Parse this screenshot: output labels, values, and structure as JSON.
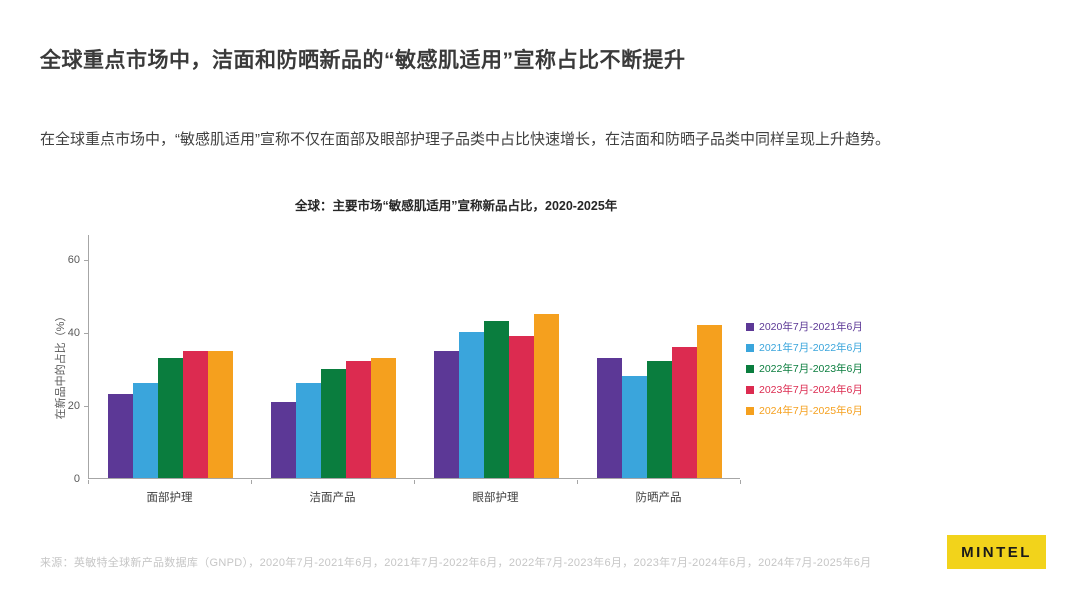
{
  "page": {
    "title": "全球重点市场中，洁面和防晒新品的“敏感肌适用”宣称占比不断提升",
    "body_text": "在全球重点市场中，“敏感肌适用”宣称不仅在面部及眼部护理子品类中占比快速增长，在洁面和防晒子品类中同样呈现上升趋势。",
    "source": "来源：英敏特全球新产品数据库（GNPD），2020年7月-2021年6月，2021年7月-2022年6月，2022年7月-2023年6月，2023年7月-2024年6月，2024年7月-2025年6月",
    "logo": "MINTEL",
    "logo_color": "#f2d31b"
  },
  "chart_data": {
    "type": "bar",
    "title": "全球：主要市场“敏感肌适用”宣称新品占比，2020-2025年",
    "xlabel": "",
    "ylabel": "在新品中的占比（%）",
    "categories": [
      "面部护理",
      "洁面产品",
      "眼部护理",
      "防晒产品"
    ],
    "series": [
      {
        "name": "2020年7月-2021年6月",
        "color": "#5C3896",
        "values": [
          23,
          21,
          35,
          33
        ]
      },
      {
        "name": "2021年7月-2022年6月",
        "color": "#3AA5DC",
        "values": [
          26,
          26,
          40,
          28
        ]
      },
      {
        "name": "2022年7月-2023年6月",
        "color": "#0A7D3E",
        "values": [
          33,
          30,
          43,
          32
        ]
      },
      {
        "name": "2023年7月-2024年6月",
        "color": "#DC2B50",
        "values": [
          35,
          32,
          39,
          36
        ]
      },
      {
        "name": "2024年7月-2025年6月",
        "color": "#F5A01E",
        "values": [
          35,
          33,
          45,
          42
        ]
      }
    ],
    "yticks": [
      0,
      20,
      40,
      60
    ],
    "ylim": [
      0,
      67
    ],
    "grid": false,
    "legend_position": "right"
  }
}
